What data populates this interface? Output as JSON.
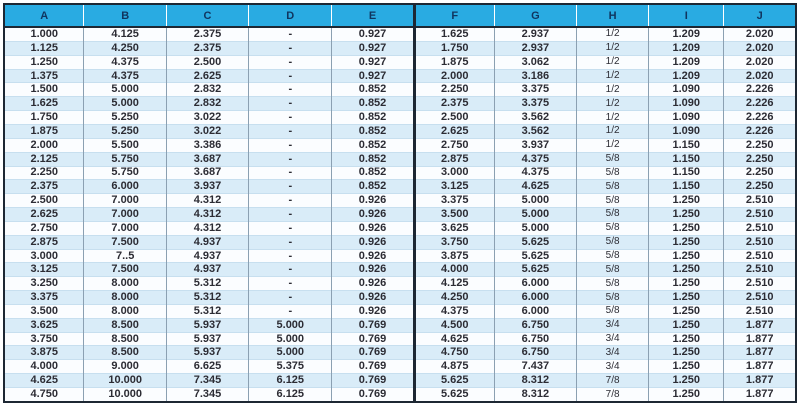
{
  "table": {
    "columns": [
      "A",
      "B",
      "C",
      "D",
      "E",
      "F",
      "G",
      "H",
      "I",
      "J"
    ],
    "rows": [
      [
        "1.000",
        "4.125",
        "2.375",
        "-",
        "0.927",
        "1.625",
        "2.937",
        "1/2",
        "1.209",
        "2.020"
      ],
      [
        "1.125",
        "4.250",
        "2.375",
        "-",
        "0.927",
        "1.750",
        "2.937",
        "1/2",
        "1.209",
        "2.020"
      ],
      [
        "1.250",
        "4.375",
        "2.500",
        "-",
        "0.927",
        "1.875",
        "3.062",
        "1/2",
        "1.209",
        "2.020"
      ],
      [
        "1.375",
        "4.375",
        "2.625",
        "-",
        "0.927",
        "2.000",
        "3.186",
        "1/2",
        "1.209",
        "2.020"
      ],
      [
        "1.500",
        "5.000",
        "2.832",
        "-",
        "0.852",
        "2.250",
        "3.375",
        "1/2",
        "1.090",
        "2.226"
      ],
      [
        "1.625",
        "5.000",
        "2.832",
        "-",
        "0.852",
        "2.375",
        "3.375",
        "1/2",
        "1.090",
        "2.226"
      ],
      [
        "1.750",
        "5.250",
        "3.022",
        "-",
        "0.852",
        "2.500",
        "3.562",
        "1/2",
        "1.090",
        "2.226"
      ],
      [
        "1.875",
        "5.250",
        "3.022",
        "-",
        "0.852",
        "2.625",
        "3.562",
        "1/2",
        "1.090",
        "2.226"
      ],
      [
        "2.000",
        "5.500",
        "3.386",
        "-",
        "0.852",
        "2.750",
        "3.937",
        "1/2",
        "1.150",
        "2.250"
      ],
      [
        "2.125",
        "5.750",
        "3.687",
        "-",
        "0.852",
        "2.875",
        "4.375",
        "5/8",
        "1.150",
        "2.250"
      ],
      [
        "2.250",
        "5.750",
        "3.687",
        "-",
        "0.852",
        "3.000",
        "4.375",
        "5/8",
        "1.150",
        "2.250"
      ],
      [
        "2.375",
        "6.000",
        "3.937",
        "-",
        "0.852",
        "3.125",
        "4.625",
        "5/8",
        "1.150",
        "2.250"
      ],
      [
        "2.500",
        "7.000",
        "4.312",
        "-",
        "0.926",
        "3.375",
        "5.000",
        "5/8",
        "1.250",
        "2.510"
      ],
      [
        "2.625",
        "7.000",
        "4.312",
        "-",
        "0.926",
        "3.500",
        "5.000",
        "5/8",
        "1.250",
        "2.510"
      ],
      [
        "2.750",
        "7.000",
        "4.312",
        "-",
        "0.926",
        "3.625",
        "5.000",
        "5/8",
        "1.250",
        "2.510"
      ],
      [
        "2.875",
        "7.500",
        "4.937",
        "-",
        "0.926",
        "3.750",
        "5.625",
        "5/8",
        "1.250",
        "2.510"
      ],
      [
        "3.000",
        "7..5",
        "4.937",
        "-",
        "0.926",
        "3.875",
        "5.625",
        "5/8",
        "1.250",
        "2.510"
      ],
      [
        "3.125",
        "7.500",
        "4.937",
        "-",
        "0.926",
        "4.000",
        "5.625",
        "5/8",
        "1.250",
        "2.510"
      ],
      [
        "3.250",
        "8.000",
        "5.312",
        "-",
        "0.926",
        "4.125",
        "6.000",
        "5/8",
        "1.250",
        "2.510"
      ],
      [
        "3.375",
        "8.000",
        "5.312",
        "-",
        "0.926",
        "4.250",
        "6.000",
        "5/8",
        "1.250",
        "2.510"
      ],
      [
        "3.500",
        "8.000",
        "5.312",
        "-",
        "0.926",
        "4.375",
        "6.000",
        "5/8",
        "1.250",
        "2.510"
      ],
      [
        "3.625",
        "8.500",
        "5.937",
        "5.000",
        "0.769",
        "4.500",
        "6.750",
        "3/4",
        "1.250",
        "1.877"
      ],
      [
        "3.750",
        "8.500",
        "5.937",
        "5.000",
        "0.769",
        "4.625",
        "6.750",
        "3/4",
        "1.250",
        "1.877"
      ],
      [
        "3.875",
        "8.500",
        "5.937",
        "5.000",
        "0.769",
        "4.750",
        "6.750",
        "3/4",
        "1.250",
        "1.877"
      ],
      [
        "4.000",
        "9.000",
        "6.625",
        "5.375",
        "0.769",
        "4.875",
        "7.437",
        "3/4",
        "1.250",
        "1.877"
      ],
      [
        "4.625",
        "10.000",
        "7.345",
        "6.125",
        "0.769",
        "5.625",
        "8.312",
        "7/8",
        "1.250",
        "1.877"
      ],
      [
        "4.750",
        "10.000",
        "7.345",
        "6.125",
        "0.769",
        "5.625",
        "8.312",
        "7/8",
        "1.250",
        "1.877"
      ]
    ]
  },
  "colors": {
    "header_bg": "#29abe2",
    "header_text": "#10355f",
    "row_odd": "#fbfdff",
    "row_even": "#d9ecf8",
    "border_dark": "#1d2733",
    "grid_v": "#8ba0b2",
    "grid_h": "#c7dfef",
    "cell_text": "#2c2c34"
  }
}
